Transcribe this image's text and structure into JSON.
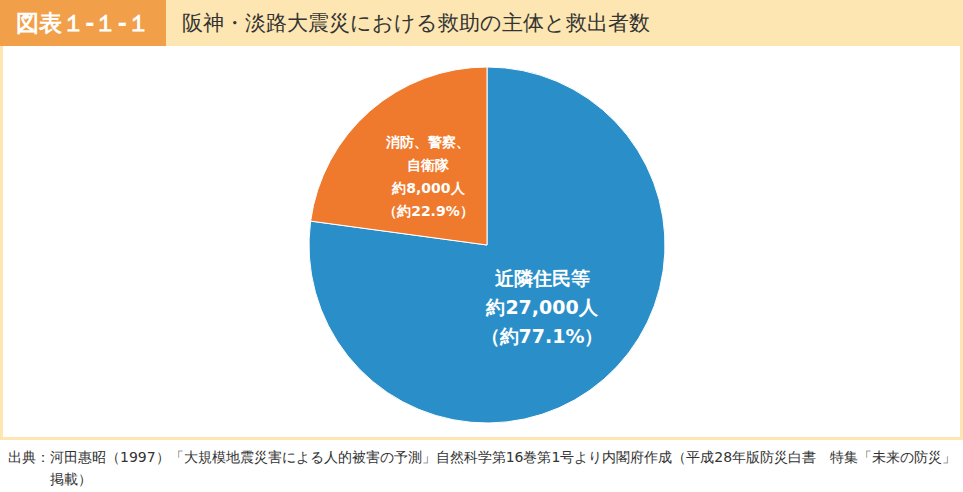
{
  "chart_data": {
    "type": "pie",
    "figure_label": "図表１-１-１",
    "title": "阪神・淡路大震災における救助の主体と救出者数",
    "categories": [
      "近隣住民等",
      "消防、警察、自衛隊"
    ],
    "values": [
      27000,
      8000
    ],
    "value_labels": [
      "約27,000人",
      "約8,000人"
    ],
    "percents": [
      77.1,
      22.9
    ],
    "percent_labels": [
      "（約77.1%）",
      "（約22.9%）"
    ],
    "colors": [
      "#2a8fc8",
      "#ef7a2d"
    ],
    "data_labels": true,
    "source": "出典：河田惠昭（1997）「大規模地震災害による人的被害の予測」自然科学第16巻第1号より内閣府作成（平成28年版防災白書　特集「未来の防災」掲載）"
  }
}
